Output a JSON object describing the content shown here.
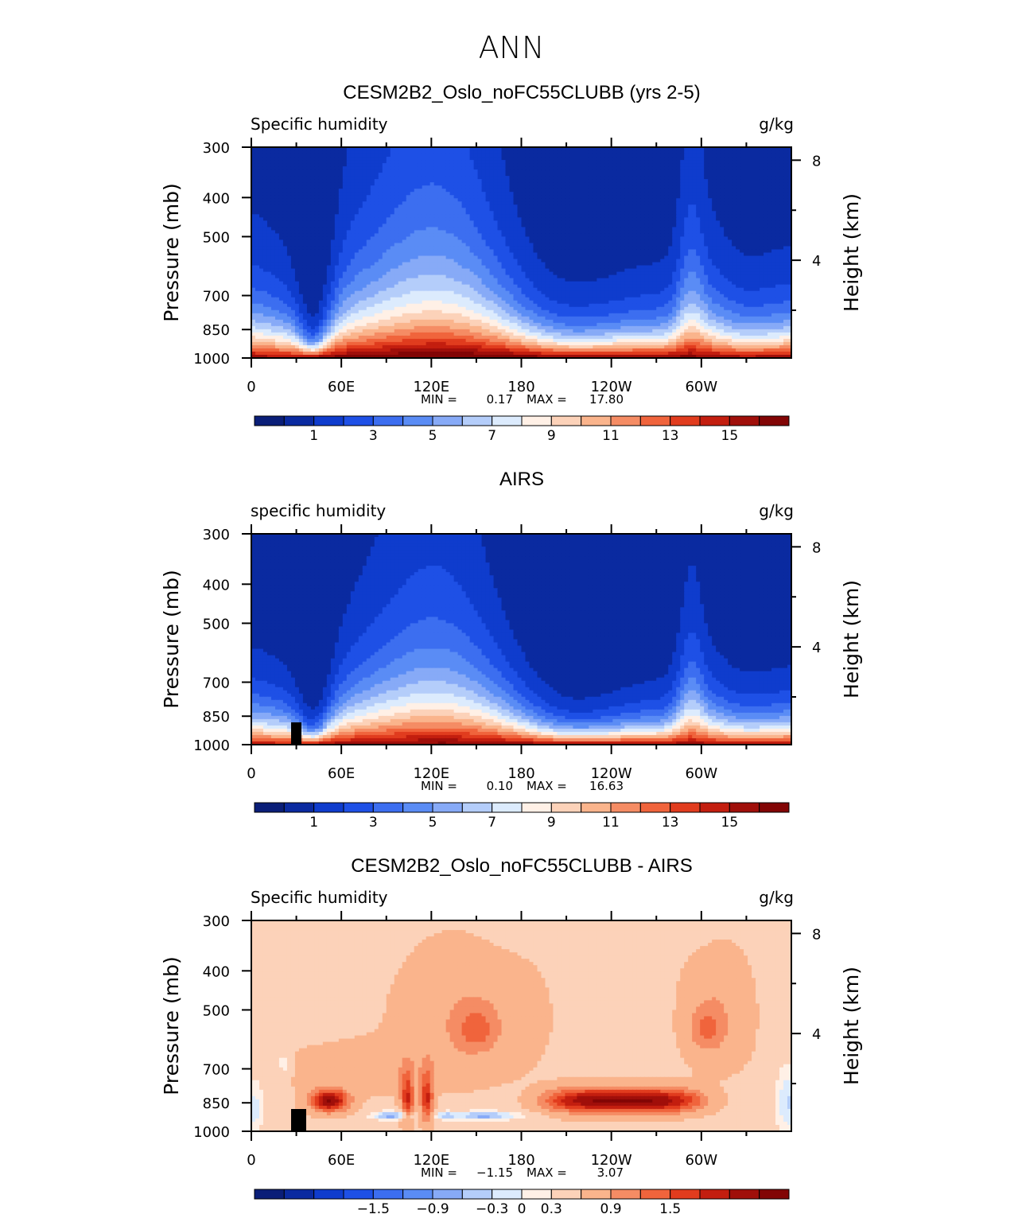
{
  "figure": {
    "title": "ANN",
    "colors": {
      "seq": [
        "#0a1e78",
        "#0a2aa0",
        "#0f3ccd",
        "#1e50e6",
        "#3c6ef0",
        "#5a8cf5",
        "#87aaf7",
        "#b4cdfa",
        "#dcebfd",
        "#fff0e6",
        "#fcd2b9",
        "#fab48c",
        "#f58c64",
        "#f0643c",
        "#e13c1e",
        "#c31e0f",
        "#a00f0a",
        "#820505"
      ],
      "div": [
        "#0a1e78",
        "#0a2aa0",
        "#0f3ccd",
        "#1e50e6",
        "#3c6ef0",
        "#5a8cf5",
        "#87aaf7",
        "#b4cdfa",
        "#dcebfd",
        "#fff0e6",
        "#fcd2b9",
        "#fab48c",
        "#f58c64",
        "#f0643c",
        "#e13c1e",
        "#c31e0f",
        "#a00f0a",
        "#820505"
      ]
    }
  },
  "chart_data": [
    {
      "type": "heatmap",
      "title": "CESM2B2_Oslo_noFC55CLUBB (yrs 2-5)",
      "variable": "Specific humidity",
      "units": "g/kg",
      "ylabel": "Pressure (mb)",
      "ylabel_right": "Height (km)",
      "x_ticks": [
        "0",
        "60E",
        "120E",
        "180",
        "120W",
        "60W"
      ],
      "x_range_deg": [
        0,
        360
      ],
      "y_ticks": [
        "300",
        "400",
        "500",
        "700",
        "850",
        "1000"
      ],
      "y_tick_values": [
        300,
        400,
        500,
        700,
        850,
        1000
      ],
      "y_range": [
        300,
        1000
      ],
      "right_ticks": [
        "8",
        "4"
      ],
      "right_tick_values": [
        8,
        4
      ],
      "stats": {
        "min_label": "MIN =",
        "min": "0.17",
        "max_label": "MAX =",
        "max": "17.80"
      },
      "colorbar": {
        "levels": [
          0,
          1,
          2,
          3,
          4,
          5,
          6,
          7,
          8,
          9,
          10,
          11,
          12,
          13,
          14,
          15,
          16
        ],
        "labels": [
          "1",
          "3",
          "5",
          "7",
          "9",
          "11",
          "13",
          "15"
        ],
        "label_values": [
          1,
          3,
          5,
          7,
          9,
          11,
          13,
          15
        ]
      }
    },
    {
      "type": "heatmap",
      "title": "AIRS",
      "variable": "specific humidity",
      "units": "g/kg",
      "ylabel": "Pressure (mb)",
      "ylabel_right": "Height (km)",
      "x_ticks": [
        "0",
        "60E",
        "120E",
        "180",
        "120W",
        "60W"
      ],
      "x_range_deg": [
        0,
        360
      ],
      "y_ticks": [
        "300",
        "400",
        "500",
        "700",
        "850",
        "1000"
      ],
      "y_tick_values": [
        300,
        400,
        500,
        700,
        850,
        1000
      ],
      "y_range": [
        300,
        1000
      ],
      "right_ticks": [
        "8",
        "4"
      ],
      "right_tick_values": [
        8,
        4
      ],
      "stats": {
        "min_label": "MIN =",
        "min": "0.10",
        "max_label": "MAX =",
        "max": "16.63"
      },
      "colorbar": {
        "levels": [
          0,
          1,
          2,
          3,
          4,
          5,
          6,
          7,
          8,
          9,
          10,
          11,
          12,
          13,
          14,
          15,
          16
        ],
        "labels": [
          "1",
          "3",
          "5",
          "7",
          "9",
          "11",
          "13",
          "15"
        ],
        "label_values": [
          1,
          3,
          5,
          7,
          9,
          11,
          13,
          15
        ]
      }
    },
    {
      "type": "heatmap",
      "title": "CESM2B2_Oslo_noFC55CLUBB - AIRS",
      "variable": "Specific humidity",
      "units": "g/kg",
      "ylabel": "Pressure (mb)",
      "ylabel_right": "Height (km)",
      "x_ticks": [
        "0",
        "60E",
        "120E",
        "180",
        "120W",
        "60W"
      ],
      "x_range_deg": [
        0,
        360
      ],
      "y_ticks": [
        "300",
        "400",
        "500",
        "700",
        "850",
        "1000"
      ],
      "y_tick_values": [
        300,
        400,
        500,
        700,
        850,
        1000
      ],
      "y_range": [
        300,
        1000
      ],
      "right_ticks": [
        "8",
        "4"
      ],
      "right_tick_values": [
        8,
        4
      ],
      "stats": {
        "min_label": "MIN =",
        "min": "−1.15",
        "max_label": "MAX =",
        "max": "3.07"
      },
      "colorbar": {
        "levels": [
          -2.4,
          -2.1,
          -1.8,
          -1.5,
          -1.2,
          -0.9,
          -0.6,
          -0.3,
          0,
          0.3,
          0.6,
          0.9,
          1.2,
          1.5,
          1.8,
          2.1,
          2.4
        ],
        "labels": [
          "−1.5",
          "−0.9",
          "−0.3",
          "0",
          "0.3",
          "0.9",
          "1.5"
        ],
        "label_values": [
          -1.5,
          -0.9,
          -0.3,
          0,
          0.3,
          0.9,
          1.5
        ]
      }
    }
  ]
}
